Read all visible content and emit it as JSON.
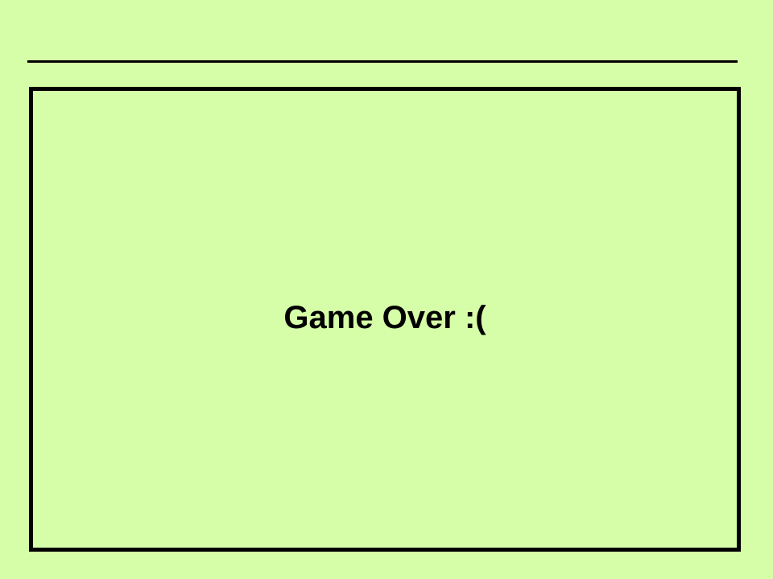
{
  "game": {
    "status_message": "Game Over :("
  },
  "colors": {
    "background": "#d6fea8",
    "border": "#000000",
    "text": "#000000"
  }
}
